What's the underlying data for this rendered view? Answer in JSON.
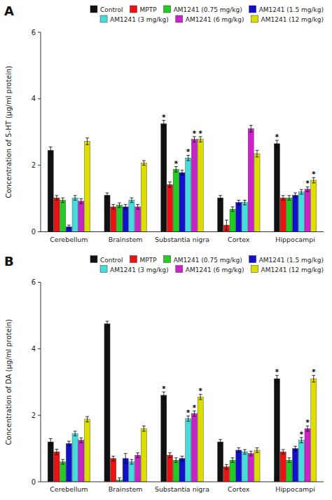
{
  "chart_data": [
    {
      "type": "bar",
      "title": "A",
      "ylabel": "Concentration of 5-HT (μg/ml protein)",
      "categories": [
        "Cerebellum",
        "Brainstem",
        "Substantia nigra",
        "Cortex",
        "Hippocampi"
      ],
      "series": [
        {
          "name": "Control",
          "color": "#111111",
          "values": [
            2.45,
            1.1,
            3.25,
            1.02,
            2.65
          ],
          "errors": [
            0.1,
            0.07,
            0.1,
            0.07,
            0.1
          ],
          "annotations": [
            null,
            null,
            "*",
            null,
            "*"
          ]
        },
        {
          "name": "MPTP",
          "color": "#ee1111",
          "values": [
            1.02,
            0.75,
            1.42,
            0.2,
            1.02
          ],
          "errors": [
            0.07,
            0.07,
            0.08,
            0.15,
            0.07
          ],
          "annotations": [
            null,
            null,
            null,
            null,
            null
          ]
        },
        {
          "name": "AM1241 (0.75 mg/kg)",
          "color": "#22cc22",
          "values": [
            0.95,
            0.8,
            1.88,
            0.68,
            1.02
          ],
          "errors": [
            0.07,
            0.07,
            0.08,
            0.07,
            0.07
          ],
          "annotations": [
            null,
            null,
            "*",
            null,
            null
          ]
        },
        {
          "name": "AM1241 (1.5 mg/kg)",
          "color": "#1111cc",
          "values": [
            0.15,
            0.75,
            1.78,
            0.88,
            1.1
          ],
          "errors": [
            0.05,
            0.07,
            0.07,
            0.07,
            0.07
          ],
          "annotations": [
            null,
            null,
            null,
            null,
            null
          ]
        },
        {
          "name": "AM1241 (3 mg/kg)",
          "color": "#44dddd",
          "values": [
            1.02,
            0.95,
            2.22,
            0.88,
            1.2
          ],
          "errors": [
            0.07,
            0.07,
            0.08,
            0.07,
            0.07
          ],
          "annotations": [
            null,
            null,
            "*",
            null,
            null
          ]
        },
        {
          "name": "AM1241 (6 mg/kg)",
          "color": "#cc22cc",
          "values": [
            0.92,
            0.75,
            2.78,
            3.1,
            1.28
          ],
          "errors": [
            0.07,
            0.07,
            0.08,
            0.1,
            0.07
          ],
          "annotations": [
            null,
            null,
            "*",
            null,
            "*"
          ]
        },
        {
          "name": "AM1241 (12 mg/kg)",
          "color": "#dddd00",
          "values": [
            2.72,
            2.07,
            2.78,
            2.35,
            1.55
          ],
          "errors": [
            0.1,
            0.07,
            0.08,
            0.1,
            0.08
          ],
          "annotations": [
            null,
            null,
            "*",
            null,
            "*"
          ]
        }
      ],
      "ylim": [
        0,
        6
      ],
      "yticks": [
        0,
        2,
        4,
        6
      ],
      "grid": false,
      "legend": "upper right"
    },
    {
      "type": "bar",
      "title": "B",
      "ylabel": "Concentration of DA (μg/ml protein)",
      "categories": [
        "Cerebellum",
        "Brainstem",
        "Substantia nigra",
        "Cortex",
        "Hippocampi"
      ],
      "series": [
        {
          "name": "Control",
          "color": "#111111",
          "values": [
            1.2,
            4.75,
            2.6,
            1.2,
            3.1
          ],
          "errors": [
            0.1,
            0.08,
            0.1,
            0.07,
            0.1
          ],
          "annotations": [
            null,
            null,
            "*",
            null,
            "*"
          ]
        },
        {
          "name": "MPTP",
          "color": "#ee1111",
          "values": [
            0.9,
            0.7,
            0.8,
            0.45,
            0.9
          ],
          "errors": [
            0.08,
            0.07,
            0.07,
            0.07,
            0.07
          ],
          "annotations": [
            null,
            null,
            null,
            null,
            null
          ]
        },
        {
          "name": "AM1241 (0.75 mg/kg)",
          "color": "#22cc22",
          "values": [
            0.6,
            0.05,
            0.65,
            0.65,
            0.65
          ],
          "errors": [
            0.07,
            0.07,
            0.07,
            0.07,
            0.07
          ],
          "annotations": [
            null,
            null,
            null,
            null,
            null
          ]
        },
        {
          "name": "AM1241 (1.5 mg/kg)",
          "color": "#1111cc",
          "values": [
            1.15,
            0.7,
            0.7,
            0.95,
            1.0
          ],
          "errors": [
            0.07,
            0.15,
            0.07,
            0.07,
            0.07
          ],
          "annotations": [
            null,
            null,
            null,
            null,
            null
          ]
        },
        {
          "name": "AM1241 (3 mg/kg)",
          "color": "#44dddd",
          "values": [
            1.45,
            0.6,
            1.9,
            0.9,
            1.25
          ],
          "errors": [
            0.07,
            0.07,
            0.08,
            0.07,
            0.08
          ],
          "annotations": [
            null,
            null,
            "*",
            null,
            "*"
          ]
        },
        {
          "name": "AM1241 (6 mg/kg)",
          "color": "#cc22cc",
          "values": [
            1.25,
            0.8,
            2.05,
            0.85,
            1.6
          ],
          "errors": [
            0.07,
            0.07,
            0.08,
            0.07,
            0.08
          ],
          "annotations": [
            null,
            null,
            "*",
            null,
            "*"
          ]
        },
        {
          "name": "AM1241 (12 mg/kg)",
          "color": "#dddd00",
          "values": [
            1.88,
            1.6,
            2.55,
            0.95,
            3.1
          ],
          "errors": [
            0.08,
            0.08,
            0.08,
            0.07,
            0.1
          ],
          "annotations": [
            null,
            null,
            "*",
            null,
            "*"
          ]
        }
      ],
      "ylim": [
        0,
        6
      ],
      "yticks": [
        0,
        2,
        4,
        6
      ],
      "grid": false,
      "legend": "upper right"
    }
  ]
}
